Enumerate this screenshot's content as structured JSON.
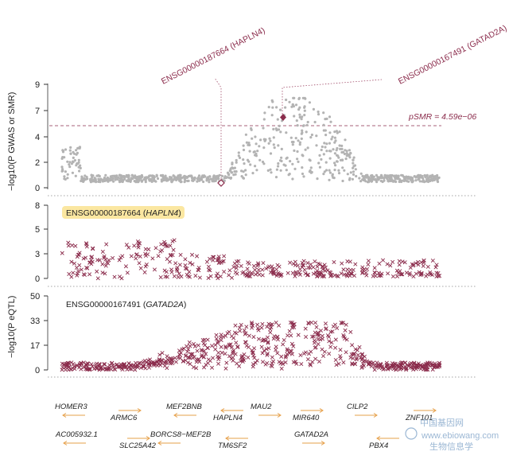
{
  "colors": {
    "gwas_points": "#b3b3b3",
    "eqtl_marks": "#8b2c4c",
    "accent": "#8b2c4c",
    "highlight_bg": "#fbe7a1",
    "gene_arrow": "#e6a04a",
    "divider": "#888888"
  },
  "labels": {
    "probe1_rot": "ENSG00000187664 (HAPLN4)",
    "probe2_rot": "ENSG00000167491 (GATAD2A)",
    "threshold": "pSMR = 4.59e−06",
    "gwas_ylabel": "−log10(P GWAS or SMR)",
    "eqtl_ylabel": "−log10(P eQTL)",
    "probe1_id": "ENSG00000187664",
    "probe1_gene": "HAPLN4",
    "probe2_id": "ENSG00000167491",
    "probe2_gene": "GATAD2A",
    "watermark_cn": "中国基因网",
    "watermark_url": "www.ebiowang.com",
    "watermark_src": "生物信息学"
  },
  "chart_data": [
    {
      "type": "scatter",
      "panel": "GWAS / SMR",
      "ylabel": "−log10(P GWAS or SMR)",
      "yticks": [
        0,
        2,
        4,
        7,
        9
      ],
      "threshold": {
        "label": "pSMR = 4.59e−06",
        "value": 5.3
      },
      "smr_points": [
        {
          "probe": "ENSG00000187664 (HAPLN4)",
          "value": 0.25,
          "marker": "hollow-diamond"
        },
        {
          "probe": "ENSG00000167491 (GATAD2A)",
          "value": 5.9,
          "marker": "filled-diamond"
        }
      ],
      "gwas_peak": 7.8,
      "gwas_baseline": 0.5
    },
    {
      "type": "scatter",
      "panel": "eQTL ENSG00000187664 (HAPLN4)",
      "ylabel": "−log10(P eQTL)",
      "yticks": [
        0,
        3,
        5,
        8
      ],
      "peak": 4.2,
      "baseline": 0.7
    },
    {
      "type": "scatter",
      "panel": "eQTL ENSG00000167491 (GATAD2A)",
      "ylabel": "−log10(P eQTL)",
      "yticks": [
        0,
        17,
        33,
        50
      ],
      "peak": 32,
      "baseline": 2
    }
  ],
  "genes": [
    {
      "name": "HOMER3",
      "row": 1,
      "dir": "left"
    },
    {
      "name": "ARMC6",
      "row": 2,
      "dir": "right"
    },
    {
      "name": "MEF2BNB",
      "row": 1,
      "dir": "left"
    },
    {
      "name": "HAPLN4",
      "row": 2,
      "dir": "left"
    },
    {
      "name": "MAU2",
      "row": 1,
      "dir": "right"
    },
    {
      "name": "MIR640",
      "row": 2,
      "dir": "right"
    },
    {
      "name": "CILP2",
      "row": 1,
      "dir": "right"
    },
    {
      "name": "ZNF101",
      "row": 2,
      "dir": "right"
    },
    {
      "name": "AC005932.1",
      "row": 3,
      "dir": "left"
    },
    {
      "name": "BORCS8−MEF2B",
      "row": 3,
      "dir": "left"
    },
    {
      "name": "GATAD2A",
      "row": 3,
      "dir": "right"
    },
    {
      "name": "SLC25A42",
      "row": 4,
      "dir": "right"
    },
    {
      "name": "TM6SF2",
      "row": 4,
      "dir": "left"
    },
    {
      "name": "PBX4",
      "row": 4,
      "dir": "left"
    }
  ]
}
